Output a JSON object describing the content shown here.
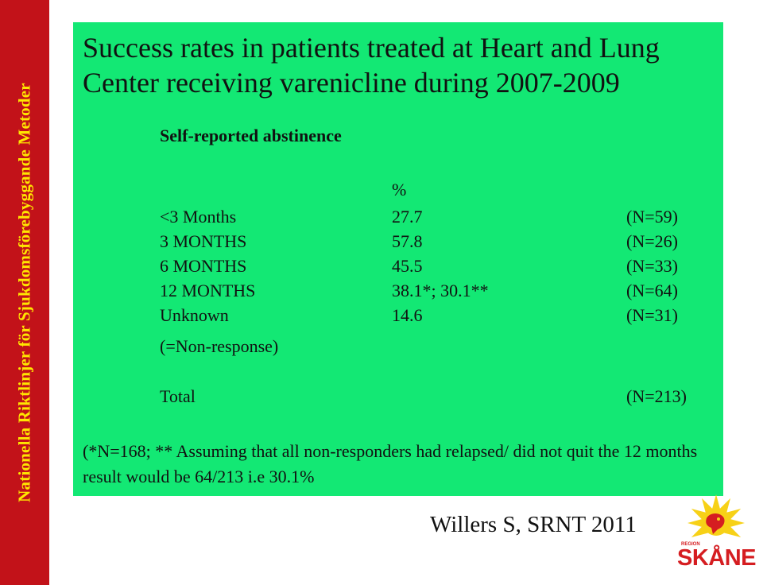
{
  "sidebar": {
    "text": "Nationella Riktlinjer för Sjukdomsförebyggande Metoder"
  },
  "slide": {
    "title": "Success rates in patients treated at Heart and Lung Center receiving varenicline during 2007-2009",
    "subtitle": "Self-reported abstinence",
    "table": {
      "header_pct": "%",
      "rows": [
        {
          "label": "<3 Months",
          "pct": "27.7",
          "n": "(N=59)"
        },
        {
          "label": "3 MONTHS",
          "pct": "57.8",
          "n": "(N=26)"
        },
        {
          "label": "6 MONTHS",
          "pct": "45.5",
          "n": "(N=33)"
        },
        {
          "label": "12 MONTHS",
          "pct": "38.1*; 30.1**",
          "n": "(N=64)"
        },
        {
          "label": "Unknown",
          "pct": "14.6",
          "n": "(N=31)"
        }
      ],
      "unknown_note": "(=Non-response)",
      "total_label": "Total",
      "total_n": "(N=213)"
    },
    "footnote": "(*N=168; ** Assuming that all non-responders had relapsed/ did not quit the 12 months result would be 64/213 i.e 30.1%",
    "citation": "Willers S, SRNT 2011"
  },
  "logo": {
    "small_text": "REGION",
    "word": "SKÅNE"
  },
  "colors": {
    "sidebar_bg": "#c21219",
    "sidebar_text": "#ffe600",
    "panel_bg": "#13e874",
    "logo_yellow": "#f7d117",
    "logo_red": "#d51d21"
  }
}
